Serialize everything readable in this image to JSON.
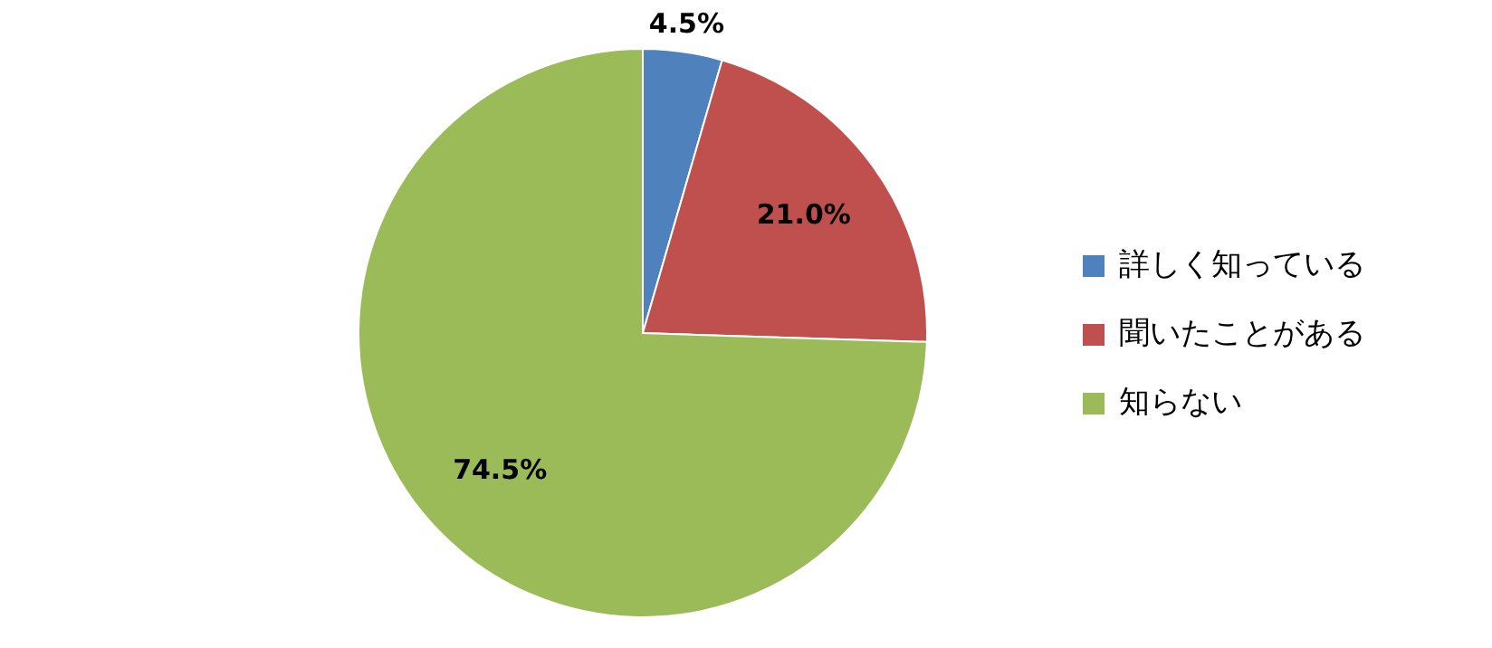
{
  "chart_data": {
    "type": "pie",
    "categories": [
      "詳しく知っている",
      "聞いたことがある",
      "知らない"
    ],
    "values": [
      4.5,
      21.0,
      74.5
    ],
    "colors": [
      "#4f81bd",
      "#c0504d",
      "#9bbb59"
    ],
    "value_labels": [
      "4.5%",
      "21.0%",
      "74.5%"
    ],
    "legend": "right"
  }
}
